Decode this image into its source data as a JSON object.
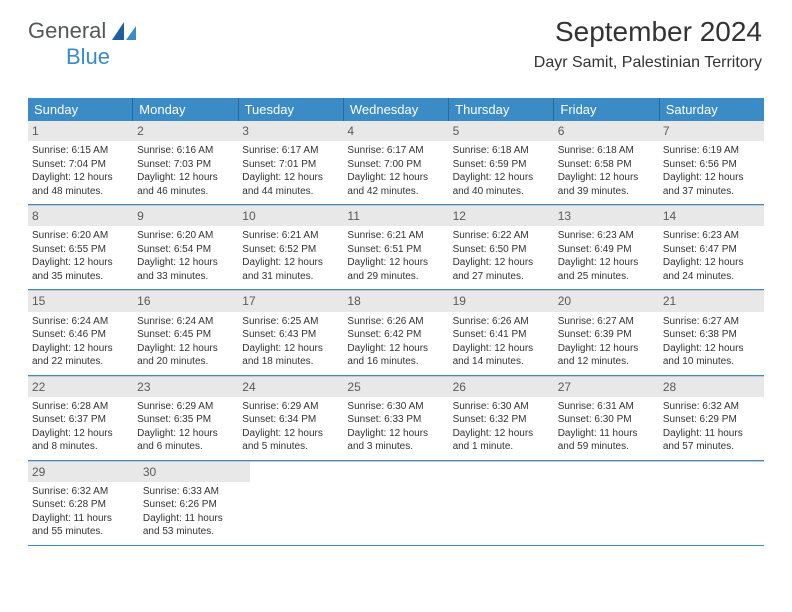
{
  "logo": {
    "part1": "General",
    "part2": "Blue"
  },
  "header": {
    "month": "September 2024",
    "location": "Dayr Samit, Palestinian Territory"
  },
  "colors": {
    "header_bg": "#3b8bc6",
    "header_text": "#ffffff",
    "row_border": "#3b8bc6",
    "day_num_bg": "#e8e8e8",
    "logo_gray": "#54585a",
    "logo_blue": "#3b8bc6"
  },
  "weekdays": [
    "Sunday",
    "Monday",
    "Tuesday",
    "Wednesday",
    "Thursday",
    "Friday",
    "Saturday"
  ],
  "weeks": [
    [
      {
        "n": "1",
        "sr": "Sunrise: 6:15 AM",
        "ss": "Sunset: 7:04 PM",
        "d1": "Daylight: 12 hours",
        "d2": "and 48 minutes."
      },
      {
        "n": "2",
        "sr": "Sunrise: 6:16 AM",
        "ss": "Sunset: 7:03 PM",
        "d1": "Daylight: 12 hours",
        "d2": "and 46 minutes."
      },
      {
        "n": "3",
        "sr": "Sunrise: 6:17 AM",
        "ss": "Sunset: 7:01 PM",
        "d1": "Daylight: 12 hours",
        "d2": "and 44 minutes."
      },
      {
        "n": "4",
        "sr": "Sunrise: 6:17 AM",
        "ss": "Sunset: 7:00 PM",
        "d1": "Daylight: 12 hours",
        "d2": "and 42 minutes."
      },
      {
        "n": "5",
        "sr": "Sunrise: 6:18 AM",
        "ss": "Sunset: 6:59 PM",
        "d1": "Daylight: 12 hours",
        "d2": "and 40 minutes."
      },
      {
        "n": "6",
        "sr": "Sunrise: 6:18 AM",
        "ss": "Sunset: 6:58 PM",
        "d1": "Daylight: 12 hours",
        "d2": "and 39 minutes."
      },
      {
        "n": "7",
        "sr": "Sunrise: 6:19 AM",
        "ss": "Sunset: 6:56 PM",
        "d1": "Daylight: 12 hours",
        "d2": "and 37 minutes."
      }
    ],
    [
      {
        "n": "8",
        "sr": "Sunrise: 6:20 AM",
        "ss": "Sunset: 6:55 PM",
        "d1": "Daylight: 12 hours",
        "d2": "and 35 minutes."
      },
      {
        "n": "9",
        "sr": "Sunrise: 6:20 AM",
        "ss": "Sunset: 6:54 PM",
        "d1": "Daylight: 12 hours",
        "d2": "and 33 minutes."
      },
      {
        "n": "10",
        "sr": "Sunrise: 6:21 AM",
        "ss": "Sunset: 6:52 PM",
        "d1": "Daylight: 12 hours",
        "d2": "and 31 minutes."
      },
      {
        "n": "11",
        "sr": "Sunrise: 6:21 AM",
        "ss": "Sunset: 6:51 PM",
        "d1": "Daylight: 12 hours",
        "d2": "and 29 minutes."
      },
      {
        "n": "12",
        "sr": "Sunrise: 6:22 AM",
        "ss": "Sunset: 6:50 PM",
        "d1": "Daylight: 12 hours",
        "d2": "and 27 minutes."
      },
      {
        "n": "13",
        "sr": "Sunrise: 6:23 AM",
        "ss": "Sunset: 6:49 PM",
        "d1": "Daylight: 12 hours",
        "d2": "and 25 minutes."
      },
      {
        "n": "14",
        "sr": "Sunrise: 6:23 AM",
        "ss": "Sunset: 6:47 PM",
        "d1": "Daylight: 12 hours",
        "d2": "and 24 minutes."
      }
    ],
    [
      {
        "n": "15",
        "sr": "Sunrise: 6:24 AM",
        "ss": "Sunset: 6:46 PM",
        "d1": "Daylight: 12 hours",
        "d2": "and 22 minutes."
      },
      {
        "n": "16",
        "sr": "Sunrise: 6:24 AM",
        "ss": "Sunset: 6:45 PM",
        "d1": "Daylight: 12 hours",
        "d2": "and 20 minutes."
      },
      {
        "n": "17",
        "sr": "Sunrise: 6:25 AM",
        "ss": "Sunset: 6:43 PM",
        "d1": "Daylight: 12 hours",
        "d2": "and 18 minutes."
      },
      {
        "n": "18",
        "sr": "Sunrise: 6:26 AM",
        "ss": "Sunset: 6:42 PM",
        "d1": "Daylight: 12 hours",
        "d2": "and 16 minutes."
      },
      {
        "n": "19",
        "sr": "Sunrise: 6:26 AM",
        "ss": "Sunset: 6:41 PM",
        "d1": "Daylight: 12 hours",
        "d2": "and 14 minutes."
      },
      {
        "n": "20",
        "sr": "Sunrise: 6:27 AM",
        "ss": "Sunset: 6:39 PM",
        "d1": "Daylight: 12 hours",
        "d2": "and 12 minutes."
      },
      {
        "n": "21",
        "sr": "Sunrise: 6:27 AM",
        "ss": "Sunset: 6:38 PM",
        "d1": "Daylight: 12 hours",
        "d2": "and 10 minutes."
      }
    ],
    [
      {
        "n": "22",
        "sr": "Sunrise: 6:28 AM",
        "ss": "Sunset: 6:37 PM",
        "d1": "Daylight: 12 hours",
        "d2": "and 8 minutes."
      },
      {
        "n": "23",
        "sr": "Sunrise: 6:29 AM",
        "ss": "Sunset: 6:35 PM",
        "d1": "Daylight: 12 hours",
        "d2": "and 6 minutes."
      },
      {
        "n": "24",
        "sr": "Sunrise: 6:29 AM",
        "ss": "Sunset: 6:34 PM",
        "d1": "Daylight: 12 hours",
        "d2": "and 5 minutes."
      },
      {
        "n": "25",
        "sr": "Sunrise: 6:30 AM",
        "ss": "Sunset: 6:33 PM",
        "d1": "Daylight: 12 hours",
        "d2": "and 3 minutes."
      },
      {
        "n": "26",
        "sr": "Sunrise: 6:30 AM",
        "ss": "Sunset: 6:32 PM",
        "d1": "Daylight: 12 hours",
        "d2": "and 1 minute."
      },
      {
        "n": "27",
        "sr": "Sunrise: 6:31 AM",
        "ss": "Sunset: 6:30 PM",
        "d1": "Daylight: 11 hours",
        "d2": "and 59 minutes."
      },
      {
        "n": "28",
        "sr": "Sunrise: 6:32 AM",
        "ss": "Sunset: 6:29 PM",
        "d1": "Daylight: 11 hours",
        "d2": "and 57 minutes."
      }
    ],
    [
      {
        "n": "29",
        "sr": "Sunrise: 6:32 AM",
        "ss": "Sunset: 6:28 PM",
        "d1": "Daylight: 11 hours",
        "d2": "and 55 minutes."
      },
      {
        "n": "30",
        "sr": "Sunrise: 6:33 AM",
        "ss": "Sunset: 6:26 PM",
        "d1": "Daylight: 11 hours",
        "d2": "and 53 minutes."
      },
      null,
      null,
      null,
      null,
      null
    ]
  ]
}
